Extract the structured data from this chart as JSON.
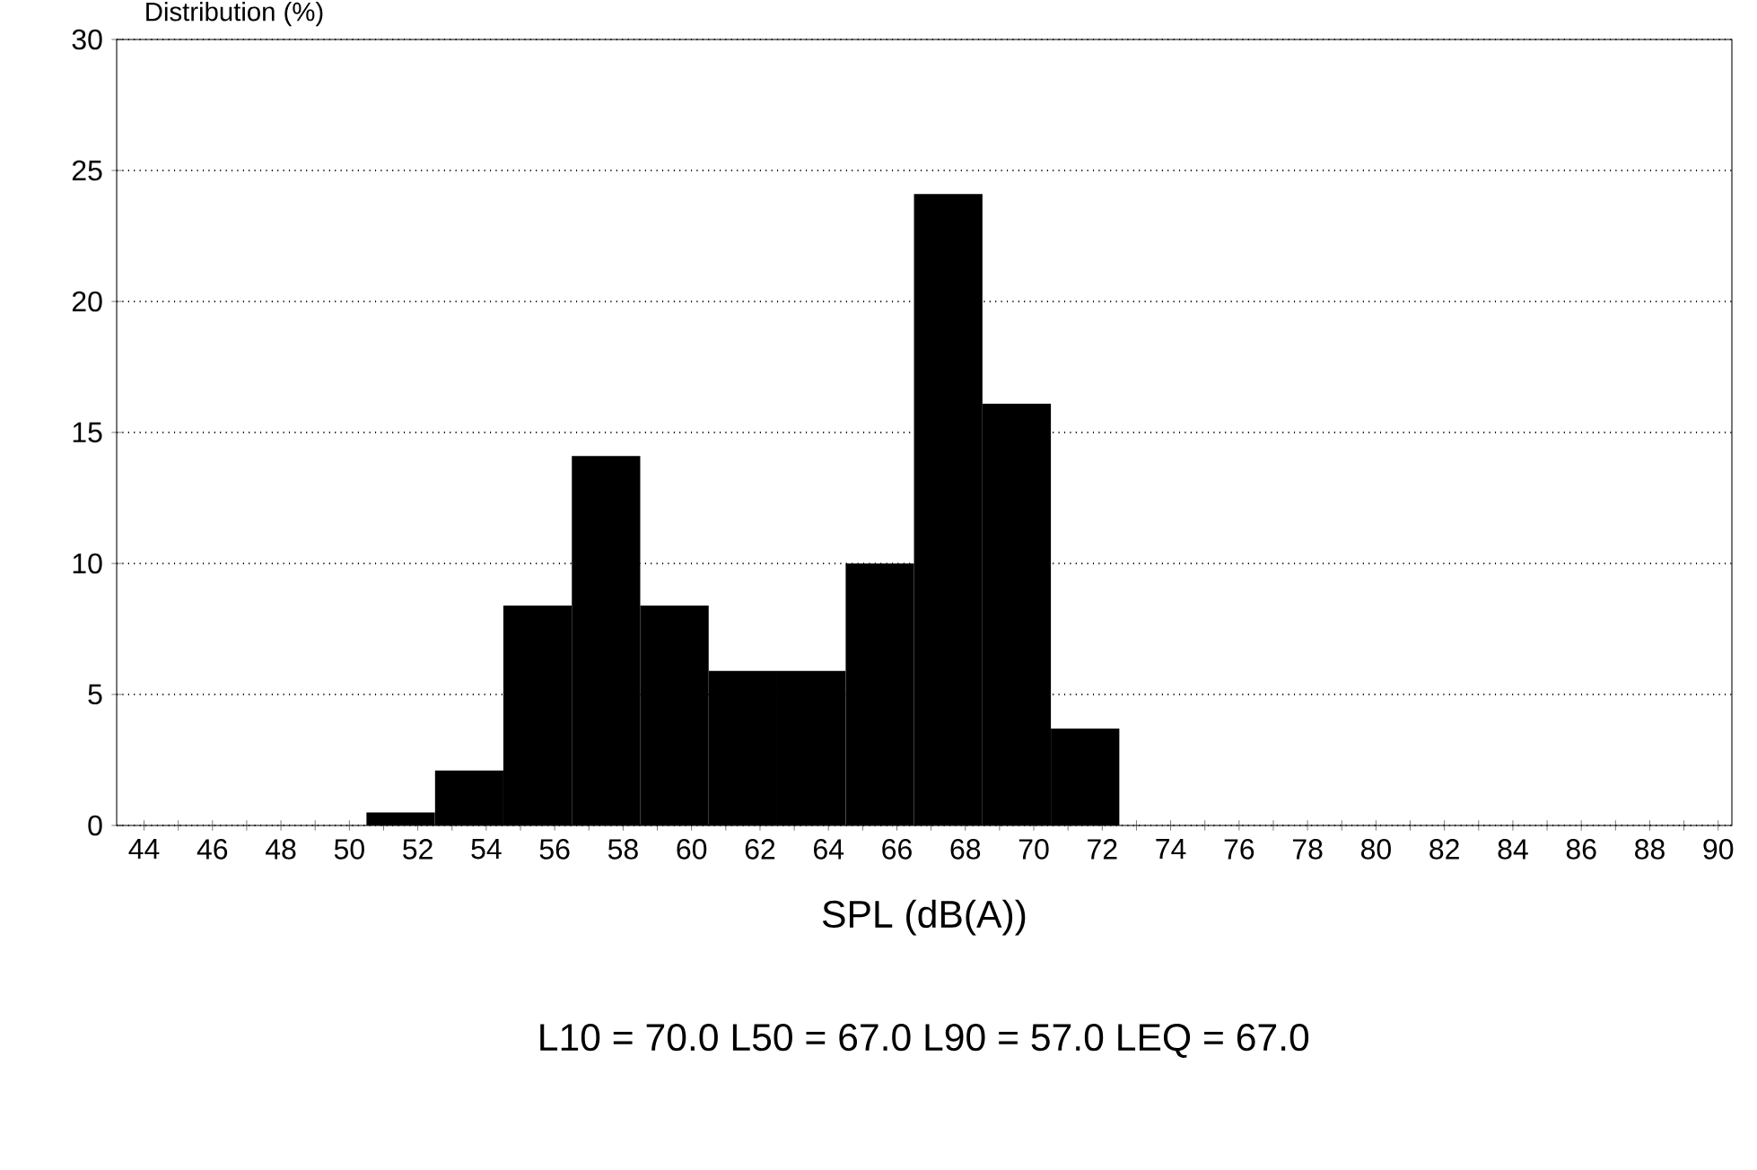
{
  "chart_data": {
    "type": "histogram",
    "xlabel": "SPL (dB(A))",
    "ylabel": "Distribution (%)",
    "annotations": [
      "L10 = 70.0  L50 = 67.0  L90 = 57.0  LEQ = 67.0"
    ],
    "bins": [
      50.5,
      52.5,
      54.5,
      56.5,
      58.5,
      60.5,
      62.5,
      64.5,
      66.5,
      68.5,
      70.5,
      72.5
    ],
    "values": [
      0.5,
      2.1,
      8.4,
      14.1,
      8.4,
      5.9,
      5.9,
      10.0,
      24.1,
      16.1,
      3.7
    ],
    "color": "#000000",
    "xlim": [
      43.2,
      90.4
    ],
    "xticks": [
      44,
      {
        "value": 45,
        "label": null
      },
      46,
      {
        "value": 47,
        "label": null
      },
      48,
      {
        "value": 49,
        "label": null
      },
      50,
      {
        "value": 51,
        "label": null
      },
      52,
      {
        "value": 53,
        "label": null
      },
      54,
      {
        "value": 55,
        "label": null
      },
      56,
      {
        "value": 57,
        "label": null
      },
      58,
      {
        "value": 59,
        "label": null
      },
      60,
      {
        "value": 61,
        "label": null
      },
      62,
      {
        "value": 63,
        "label": null
      },
      64,
      {
        "value": 65,
        "label": null
      },
      66,
      {
        "value": 67,
        "label": null
      },
      68,
      {
        "value": 69,
        "label": null
      },
      70,
      {
        "value": 71,
        "label": null
      },
      72,
      {
        "value": 73,
        "label": null
      },
      74,
      {
        "value": 75,
        "label": null
      },
      76,
      {
        "value": 77,
        "label": null
      },
      78,
      {
        "value": 79,
        "label": null
      },
      80,
      {
        "value": 81,
        "label": null
      },
      82,
      {
        "value": 83,
        "label": null
      },
      84,
      {
        "value": 85,
        "label": null
      },
      86,
      {
        "value": 87,
        "label": null
      },
      88,
      {
        "value": 89,
        "label": null
      },
      90
    ],
    "ylim": [
      0,
      30
    ],
    "yticks": [
      0,
      5,
      10,
      15,
      20,
      25,
      30
    ],
    "grid": "y"
  }
}
